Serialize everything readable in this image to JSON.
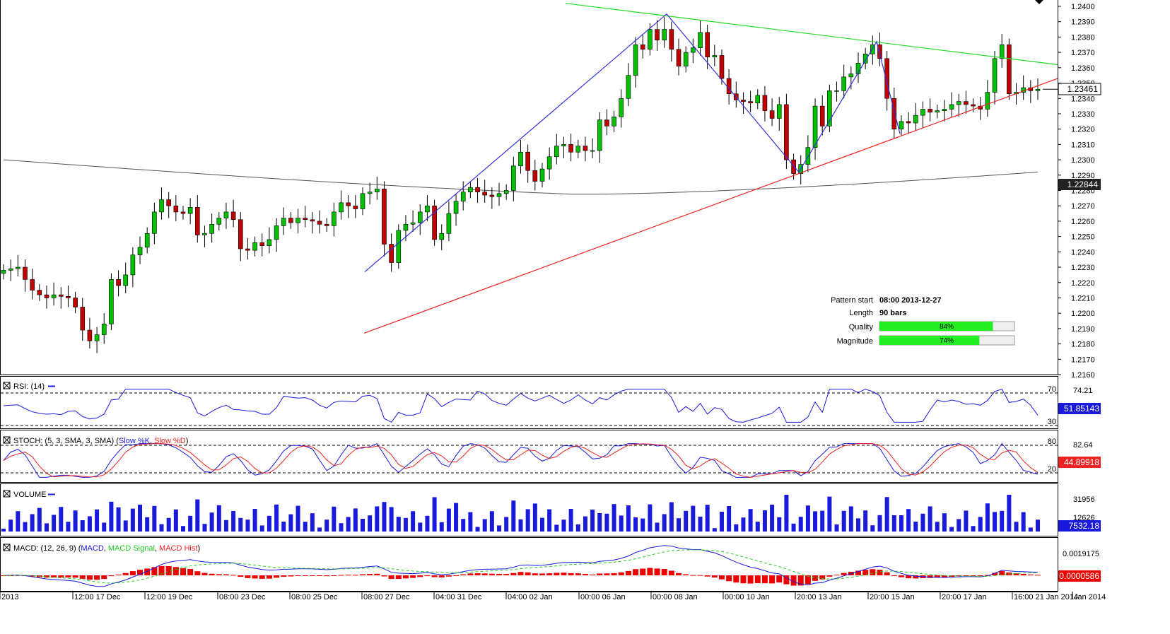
{
  "chart_data": {
    "type": "candlestick",
    "title": "",
    "colors": {
      "up": "#00c000",
      "down": "#c00000",
      "grid": "#000000",
      "pattern": "#3333dd",
      "resistance": "#22dd22",
      "support": "#ee2222",
      "sma": "#555555",
      "rsi": "#1a1adc",
      "stoch_k": "#1a1adc",
      "stoch_d": "#ee2222",
      "volume": "#1a1adc",
      "macd": "#1a1adc",
      "macd_signal": "#22cc22",
      "macd_hist": "#ee0000"
    },
    "main": {
      "ylim": [
        1.2165,
        1.2402
      ],
      "yticks": [
        "1.2400",
        "1.2390",
        "1.2380",
        "1.2370",
        "1.2360",
        "1.2350",
        "1.2340",
        "1.2330",
        "1.2320",
        "1.2310",
        "1.2300",
        "1.2290",
        "1.2280",
        "1.2270",
        "1.2260",
        "1.2250",
        "1.2240",
        "1.2230",
        "1.2220",
        "1.2210",
        "1.2200",
        "1.2190",
        "1.2180",
        "1.2170",
        "1.2160"
      ],
      "price_label": "1.23461",
      "sma_label": "1.22844",
      "closes": [
        1.2228,
        1.2229,
        1.223,
        1.2222,
        1.2215,
        1.2212,
        1.221,
        1.2212,
        1.2211,
        1.221,
        1.2204,
        1.2189,
        1.2182,
        1.2186,
        1.2193,
        1.2222,
        1.2218,
        1.2225,
        1.2238,
        1.2243,
        1.2252,
        1.2266,
        1.2274,
        1.227,
        1.2266,
        1.2265,
        1.2269,
        1.2251,
        1.2252,
        1.2258,
        1.2262,
        1.2266,
        1.2261,
        1.2242,
        1.2241,
        1.2246,
        1.2244,
        1.2248,
        1.2257,
        1.2262,
        1.2259,
        1.2262,
        1.2261,
        1.226,
        1.2258,
        1.2257,
        1.2266,
        1.2272,
        1.227,
        1.2268,
        1.2278,
        1.2279,
        1.2281,
        1.2245,
        1.2233,
        1.2254,
        1.2258,
        1.2259,
        1.2266,
        1.227,
        1.2248,
        1.2252,
        1.2265,
        1.2273,
        1.2279,
        1.2282,
        1.2279,
        1.2277,
        1.2276,
        1.2278,
        1.228,
        1.2296,
        1.2305,
        1.2293,
        1.2286,
        1.2294,
        1.2302,
        1.2309,
        1.231,
        1.2305,
        1.2309,
        1.2306,
        1.2306,
        1.2326,
        1.2322,
        1.2328,
        1.234,
        1.2355,
        1.2375,
        1.2372,
        1.2385,
        1.2378,
        1.2385,
        1.2372,
        1.2361,
        1.237,
        1.2373,
        1.2383,
        1.2367,
        1.2368,
        1.2353,
        1.2343,
        1.2339,
        1.2338,
        1.2337,
        1.2342,
        1.2332,
        1.2327,
        1.2336,
        1.23,
        1.2291,
        1.2297,
        1.2308,
        1.2335,
        1.2322,
        1.2345,
        1.2345,
        1.2354,
        1.2356,
        1.2363,
        1.2369,
        1.2375,
        1.2366,
        1.234,
        1.232,
        1.2325,
        1.2324,
        1.2329,
        1.2333,
        1.2331,
        1.2332,
        1.2333,
        1.2336,
        1.2338,
        1.2336,
        1.2335,
        1.2333,
        1.2344,
        1.2366,
        1.2375,
        1.2343,
        1.2344,
        1.2347,
        1.2345,
        1.2346
      ]
    },
    "x_labels": [
      "2013",
      "12:00 17 Dec",
      "12:00 19 Dec",
      "08:00 23 Dec",
      "08:00 25 Dec",
      "08:00 27 Dec",
      "04:00 31 Dec",
      "04:00 02 Jan",
      "00:00 06 Jan",
      "00:00 08 Jan",
      "00:00 10 Jan",
      "20:00 13 Jan",
      "20:00 15 Jan",
      "20:00 17 Jan",
      "16:00 21 Jan 2014",
      "Jan 2014"
    ],
    "pattern_info": {
      "pattern_start_label": "Pattern start",
      "pattern_start": "08:00 2013-12-27",
      "length_label": "Length",
      "length": "90 bars",
      "quality_label": "Quality",
      "quality": 84,
      "magnitude_label": "Magnitude",
      "magnitude": 74
    },
    "rsi": {
      "title": "RSI: (14)",
      "levels": [
        "70",
        "30"
      ],
      "top_label": "74.21",
      "value_label": "51.85143"
    },
    "stoch": {
      "title": "STOCH: (5, 3, SMA, 3, SMA)",
      "k_label": "Slow %K",
      "d_label": "Slow %D",
      "levels": [
        "80",
        "20"
      ],
      "top_label": "82.64",
      "value_label": "44.89918"
    },
    "volume": {
      "title": "VOLUME",
      "top_label": "31956",
      "mid_label": "12626",
      "value_label": "7532.18"
    },
    "macd": {
      "title": "MACD: (12, 26, 9)",
      "macd_label": "MACD",
      "signal_label": "MACD Signal",
      "hist_label": "MACD Hist",
      "top_label": "0.0019175",
      "value_label": "0.0000586"
    }
  }
}
